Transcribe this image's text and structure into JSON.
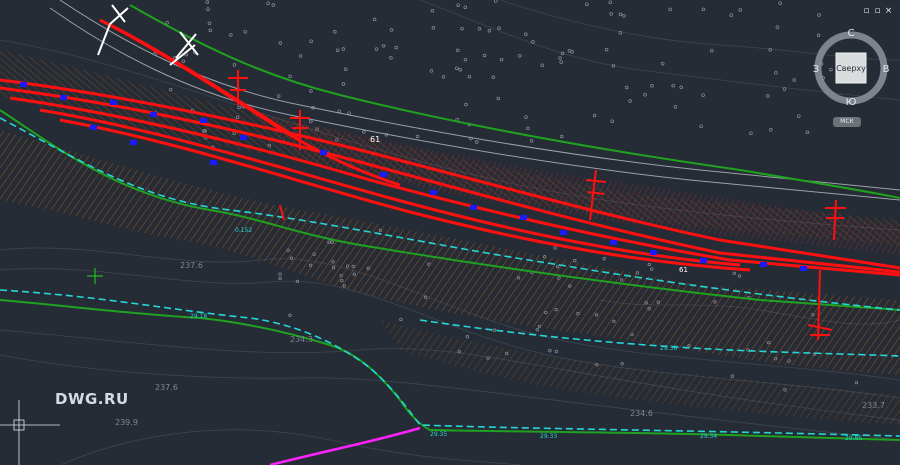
{
  "window": {
    "close_glyph": "×",
    "restore_glyph": "▫",
    "maximize_glyph": "▫"
  },
  "viewcube": {
    "face_label": "Сверху",
    "north": "С",
    "south": "Ю",
    "east": "В",
    "west": "З",
    "ucs_label": "МСК"
  },
  "watermark": "DWG.RU",
  "annotations": {
    "road_label": "61",
    "label_61_right": "61",
    "elevation_1": "237.6",
    "elevation_2": "237.6",
    "elevation_3": "239.9",
    "elevation_4": "234.6",
    "elevation_5": "234.3",
    "elevation_6": "233.7",
    "cyan_1": "0.152",
    "cyan_2": "29.36",
    "cyan_3": "29.35",
    "cyan_4": "29.33",
    "cyan_5": "29.34",
    "cyan_6": "29.18",
    "cyan_7": "29.85"
  },
  "colors": {
    "background": "#262c35",
    "rail": "#ff1010",
    "green": "#1fa21f",
    "cyan": "#25d6d6",
    "orange": "#b8651c",
    "blue": "#1a1aff",
    "magenta": "#ff22ff",
    "embankment": "#6b2a2e",
    "grey_line": "#9aa1aa"
  }
}
